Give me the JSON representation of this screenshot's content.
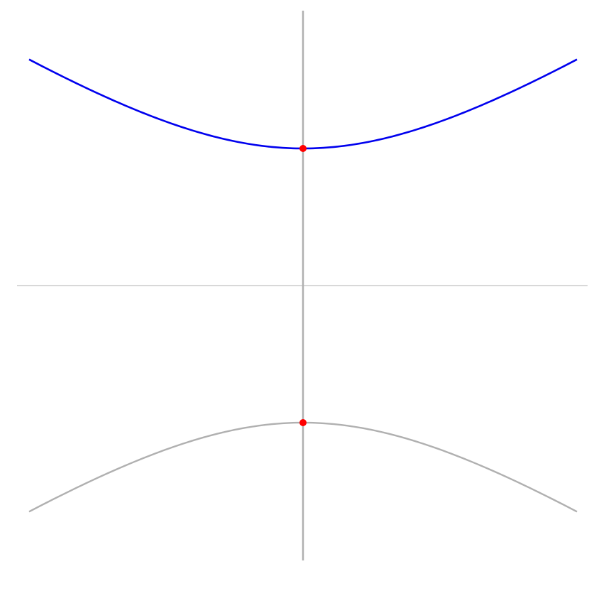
{
  "diagram": {
    "kind": "hyperbola-branches",
    "background": "#ffffff",
    "colors": {
      "upper_branch": "#0000ee",
      "lower_branch": "#b0b0b0",
      "axis": "#b0b0b0",
      "vertex": "#ff0000"
    },
    "curves": [
      {
        "name": "upper-branch",
        "color_key": "upper_branch",
        "vertex": [
          0,
          2
        ],
        "direction": 1
      },
      {
        "name": "lower-branch",
        "color_key": "lower_branch",
        "vertex": [
          0,
          -2
        ],
        "direction": -1
      }
    ],
    "vertices": [
      {
        "name": "upper-vertex-point",
        "x": 0,
        "y": 2
      },
      {
        "name": "lower-vertex-point",
        "x": 0,
        "y": -2
      }
    ],
    "domain": {
      "x_min": -4,
      "x_max": 4
    },
    "range": {
      "y_min": -4,
      "y_max": 4
    }
  }
}
